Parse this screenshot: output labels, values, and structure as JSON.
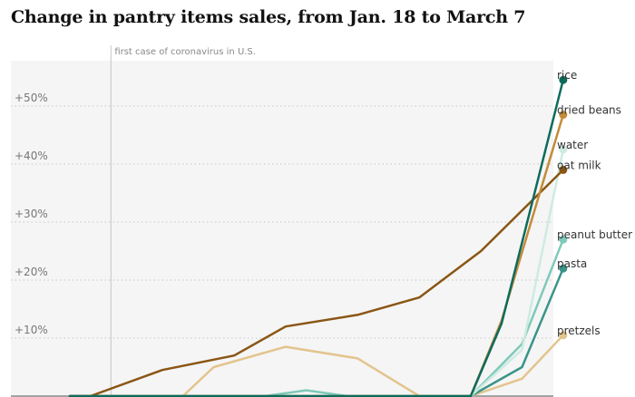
{
  "chart_data": {
    "type": "line",
    "title": "Change in pantry items sales, from Jan. 18 to March 7",
    "xlabel": "",
    "ylabel": "",
    "x": [
      1,
      2,
      3,
      4,
      5,
      6,
      7,
      8,
      9,
      10,
      11,
      12,
      13,
      14,
      15,
      16,
      17,
      18,
      19,
      20,
      21,
      22,
      23,
      24,
      25,
      26,
      27,
      28,
      29,
      30,
      31,
      32,
      33,
      34,
      35,
      36,
      37,
      38,
      39,
      40,
      41,
      42,
      43,
      44,
      45,
      46,
      47,
      48,
      49
    ],
    "ylim": [
      0,
      60
    ],
    "yticks": [
      {
        "value": 10,
        "label": "+10%"
      },
      {
        "value": 20,
        "label": "+20%"
      },
      {
        "value": 30,
        "label": "+30%"
      },
      {
        "value": 40,
        "label": "+40%"
      },
      {
        "value": 50,
        "label": "+50%"
      }
    ],
    "grid": true,
    "annotation": {
      "x": 5,
      "label": "first case of coronavirus in U.S."
    },
    "series": [
      {
        "name": "pretzels",
        "color": "#e3c48d",
        "points": [
          [
            1,
            0
          ],
          [
            3,
            0
          ],
          [
            12,
            0
          ],
          [
            15,
            5
          ],
          [
            22,
            8.5
          ],
          [
            29,
            6.5
          ],
          [
            35,
            0
          ],
          [
            40,
            0
          ],
          [
            45,
            3
          ],
          [
            49,
            10.5
          ]
        ]
      },
      {
        "name": "peanut butter",
        "color": "#7fc9b9",
        "points": [
          [
            1,
            0
          ],
          [
            3,
            0
          ],
          [
            20,
            0
          ],
          [
            24,
            1
          ],
          [
            28,
            0
          ],
          [
            35,
            0
          ],
          [
            40,
            0
          ],
          [
            45,
            9
          ],
          [
            49,
            27
          ]
        ]
      },
      {
        "name": "pasta",
        "color": "#3a9487",
        "points": [
          [
            1,
            0
          ],
          [
            3,
            0
          ],
          [
            20,
            0
          ],
          [
            24,
            0
          ],
          [
            28,
            0
          ],
          [
            35,
            0
          ],
          [
            40,
            0
          ],
          [
            45,
            5
          ],
          [
            49,
            22
          ]
        ]
      },
      {
        "name": "water",
        "color": "#cdebe2",
        "points": [
          [
            1,
            0
          ],
          [
            3,
            0
          ],
          [
            20,
            0
          ],
          [
            28,
            0
          ],
          [
            35,
            0
          ],
          [
            40,
            0
          ],
          [
            45,
            8
          ],
          [
            49,
            42.5
          ]
        ]
      },
      {
        "name": "oat milk",
        "color": "#8a5614",
        "points": [
          [
            1,
            0
          ],
          [
            3,
            0
          ],
          [
            10,
            4.5
          ],
          [
            17,
            7
          ],
          [
            22,
            12
          ],
          [
            29,
            14
          ],
          [
            35,
            17
          ],
          [
            41,
            25
          ],
          [
            49,
            39
          ]
        ]
      },
      {
        "name": "dried beans",
        "color": "#c48b39",
        "points": [
          [
            1,
            0
          ],
          [
            3,
            0
          ],
          [
            20,
            0
          ],
          [
            28,
            0
          ],
          [
            35,
            0
          ],
          [
            40,
            0
          ],
          [
            43,
            13
          ],
          [
            49,
            48.5
          ]
        ]
      },
      {
        "name": "rice",
        "color": "#0e6b5c",
        "points": [
          [
            1,
            0
          ],
          [
            3,
            0
          ],
          [
            20,
            0
          ],
          [
            28,
            0
          ],
          [
            35,
            0
          ],
          [
            40,
            0
          ],
          [
            43,
            12.5
          ],
          [
            49,
            54.5
          ]
        ]
      }
    ]
  }
}
